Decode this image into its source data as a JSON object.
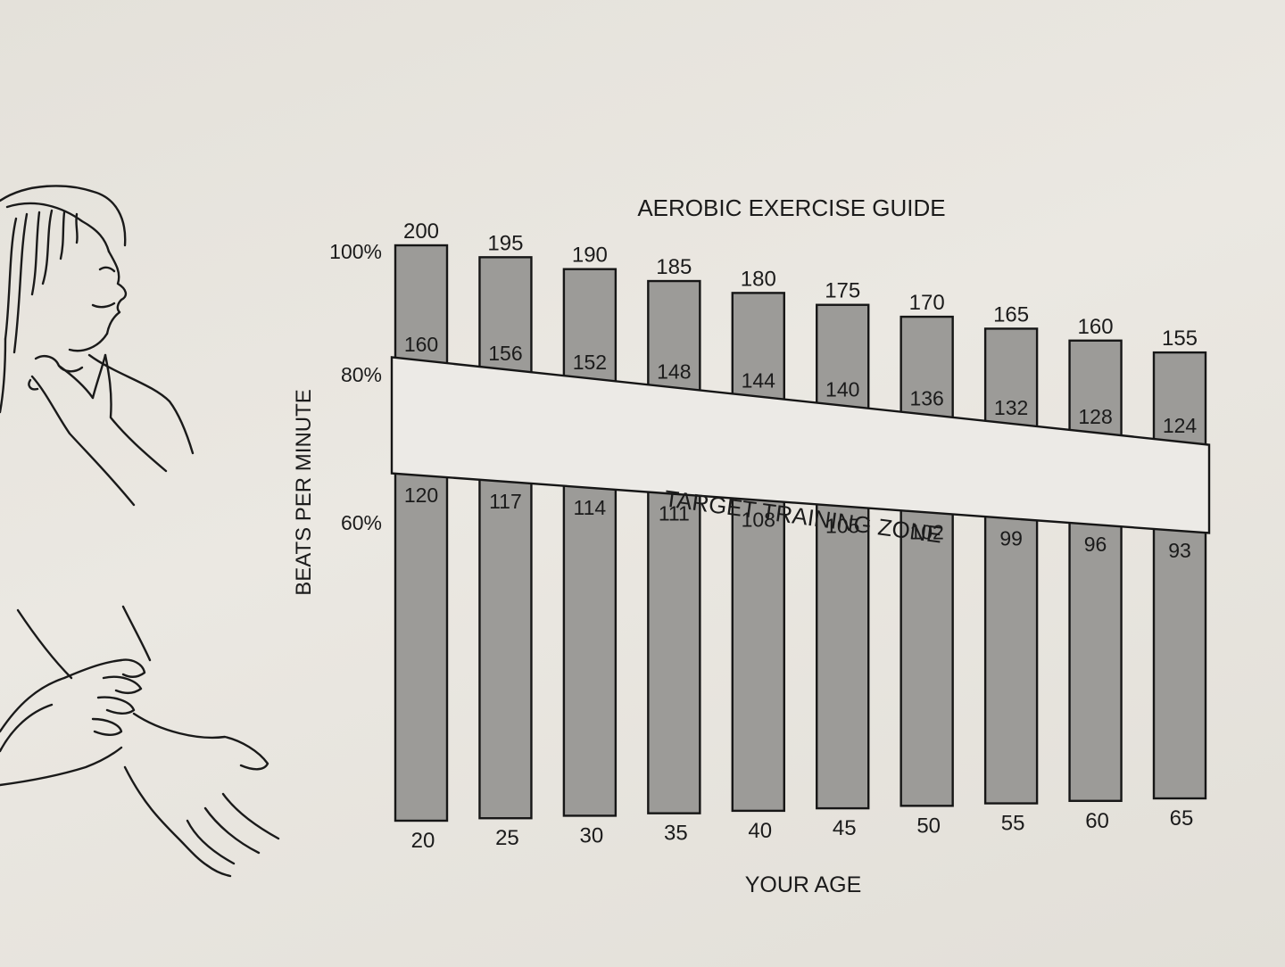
{
  "chart_data": {
    "type": "bar",
    "title": "AEROBIC EXERCISE GUIDE",
    "xlabel": "YOUR AGE",
    "ylabel": "BEATS PER MINUTE",
    "categories": [
      "20",
      "25",
      "30",
      "35",
      "40",
      "45",
      "50",
      "55",
      "60",
      "65"
    ],
    "series": [
      {
        "name": "100%",
        "values": [
          200,
          195,
          190,
          185,
          180,
          175,
          170,
          165,
          160,
          155
        ]
      },
      {
        "name": "80%",
        "values": [
          160,
          156,
          152,
          148,
          144,
          140,
          136,
          132,
          128,
          124
        ]
      },
      {
        "name": "60%",
        "values": [
          120,
          117,
          114,
          111,
          108,
          105,
          102,
          99,
          96,
          93
        ]
      }
    ],
    "y_percent_labels": [
      "100%",
      "80%",
      "60%"
    ],
    "zone_label": "TARGET TRAINING ZONE",
    "bar_color": "#9c9b98",
    "zone_color": "#eceae6"
  }
}
